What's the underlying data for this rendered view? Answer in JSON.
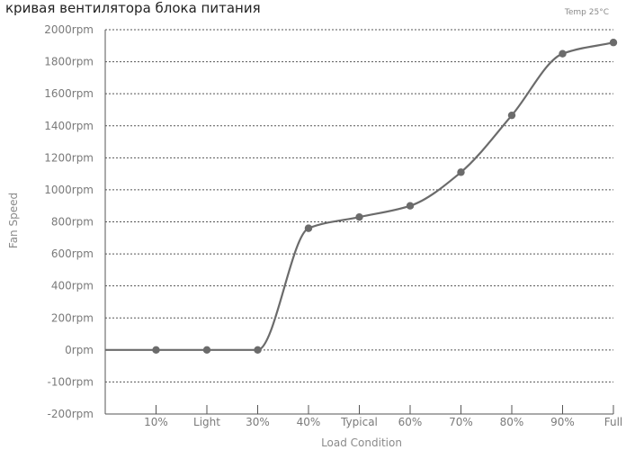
{
  "chart_data": {
    "type": "line",
    "title": "кривая вентилятора блока питания",
    "note": "Temp 25°C",
    "xlabel": "Load Condition",
    "ylabel": "Fan Speed",
    "categories": [
      "10%",
      "Light",
      "30%",
      "40%",
      "Typical",
      "60%",
      "70%",
      "80%",
      "90%",
      "Full"
    ],
    "ytick_labels": [
      "-200rpm",
      "-100rpm",
      "0rpm",
      "200rpm",
      "400rpm",
      "600rpm",
      "800rpm",
      "1000rpm",
      "1200rpm",
      "1400rpm",
      "1600rpm",
      "1800rpm",
      "2000rpm"
    ],
    "x_start": 0,
    "x_end": 10,
    "series": [
      {
        "x": [
          0,
          1,
          2,
          3,
          4,
          5,
          6,
          7,
          8,
          9,
          10
        ],
        "values": [
          0,
          0,
          0,
          0,
          760,
          830,
          900,
          1110,
          1465,
          1850,
          1920
        ],
        "markers": [
          false,
          true,
          true,
          true,
          true,
          true,
          true,
          true,
          true,
          true,
          true
        ]
      }
    ],
    "colors": {
      "line": "#6b6b6b",
      "marker": "#6b6b6b"
    },
    "grid": true,
    "smooth": true
  }
}
